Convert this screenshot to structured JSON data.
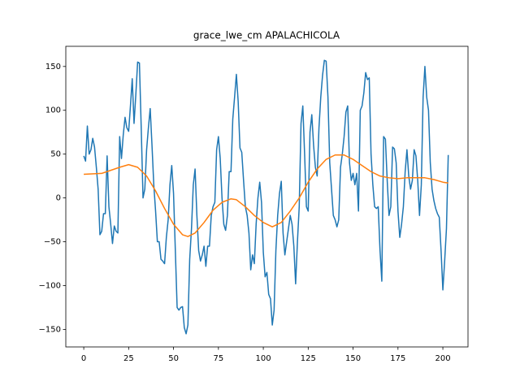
{
  "chart_data": {
    "type": "line",
    "title": "grace_lwe_cm APALACHICOLA",
    "xlim": [
      -10,
      214
    ],
    "ylim": [
      -170,
      173
    ],
    "xticks": [
      0,
      25,
      50,
      75,
      100,
      125,
      150,
      175,
      200
    ],
    "yticks": [
      {
        "value": -150,
        "label": "−150"
      },
      {
        "value": -100,
        "label": "−100"
      },
      {
        "value": -50,
        "label": "−50"
      },
      0,
      50,
      100,
      150
    ],
    "grid": false,
    "series": [
      {
        "color": "#1f77b4",
        "x": [
          0,
          1,
          2,
          3,
          4,
          5,
          6,
          7,
          8,
          9,
          10,
          11,
          12,
          13,
          14,
          15,
          16,
          17,
          18,
          19,
          20,
          21,
          22,
          23,
          24,
          25,
          26,
          27,
          28,
          29,
          30,
          31,
          32,
          33,
          34,
          35,
          36,
          37,
          38,
          39,
          40,
          41,
          42,
          43,
          44,
          45,
          46,
          47,
          48,
          49,
          50,
          51,
          52,
          53,
          54,
          55,
          56,
          57,
          58,
          59,
          60,
          61,
          62,
          63,
          64,
          65,
          66,
          67,
          68,
          69,
          70,
          71,
          72,
          73,
          74,
          75,
          76,
          77,
          78,
          79,
          80,
          81,
          82,
          83,
          84,
          85,
          86,
          87,
          88,
          89,
          90,
          91,
          92,
          93,
          94,
          95,
          96,
          97,
          98,
          99,
          100,
          101,
          102,
          103,
          104,
          105,
          106,
          107,
          108,
          109,
          110,
          111,
          112,
          113,
          114,
          115,
          116,
          117,
          118,
          119,
          120,
          121,
          122,
          123,
          124,
          125,
          126,
          127,
          128,
          129,
          130,
          131,
          132,
          133,
          134,
          135,
          136,
          137,
          138,
          139,
          140,
          141,
          142,
          143,
          144,
          145,
          146,
          147,
          148,
          149,
          150,
          151,
          152,
          153,
          154,
          155,
          156,
          157,
          158,
          159,
          160,
          161,
          162,
          163,
          164,
          165,
          166,
          167,
          168,
          169,
          170,
          171,
          172,
          173,
          174,
          175,
          176,
          177,
          178,
          179,
          180,
          181,
          182,
          183,
          184,
          185,
          186,
          187,
          188,
          189,
          190,
          191,
          192,
          193,
          194,
          195,
          196,
          197,
          198,
          199,
          200,
          201,
          202,
          203
        ],
        "values": [
          48,
          42,
          82,
          50,
          55,
          68,
          58,
          35,
          10,
          -42,
          -38,
          -18,
          -18,
          48,
          -10,
          -30,
          -52,
          -32,
          -38,
          -40,
          70,
          45,
          72,
          92,
          80,
          76,
          105,
          136,
          85,
          118,
          155,
          154,
          80,
          0,
          10,
          55,
          80,
          102,
          60,
          15,
          -15,
          -50,
          -50,
          -70,
          -72,
          -75,
          -45,
          -25,
          15,
          37,
          5,
          -60,
          -125,
          -128,
          -125,
          -124,
          -148,
          -155,
          -145,
          -70,
          -35,
          15,
          33,
          -20,
          -60,
          -72,
          -65,
          -55,
          -78,
          -55,
          -55,
          -20,
          -10,
          -5,
          55,
          70,
          45,
          0,
          -30,
          -37,
          -20,
          30,
          30,
          90,
          115,
          141,
          110,
          57,
          52,
          20,
          -10,
          -20,
          -40,
          -82,
          -65,
          -75,
          -30,
          0,
          18,
          -5,
          -62,
          -90,
          -85,
          -110,
          -115,
          -145,
          -128,
          -60,
          -20,
          5,
          19,
          -40,
          -65,
          -50,
          -35,
          -20,
          -30,
          -55,
          -98,
          -50,
          -10,
          85,
          105,
          50,
          -10,
          -15,
          75,
          95,
          60,
          35,
          25,
          80,
          115,
          140,
          157,
          156,
          115,
          40,
          10,
          -20,
          -25,
          -33,
          -25,
          35,
          50,
          70,
          98,
          105,
          40,
          20,
          28,
          15,
          28,
          -15,
          100,
          105,
          120,
          143,
          135,
          137,
          50,
          15,
          -10,
          -12,
          -10,
          -60,
          -95,
          70,
          67,
          20,
          -20,
          -10,
          58,
          56,
          40,
          -15,
          -45,
          -30,
          -10,
          30,
          55,
          25,
          10,
          20,
          55,
          48,
          20,
          -20,
          15,
          115,
          150,
          115,
          100,
          40,
          10,
          -3,
          -12,
          -18,
          -22,
          -60,
          -105,
          -72,
          -35,
          49
        ]
      },
      {
        "color": "#ff7f0e",
        "x": [
          0,
          10,
          20,
          25,
          30,
          35,
          40,
          45,
          50,
          55,
          58,
          62,
          67,
          72,
          77,
          82,
          85,
          90,
          95,
          100,
          105,
          110,
          115,
          120,
          125,
          130,
          135,
          140,
          145,
          150,
          155,
          160,
          165,
          170,
          175,
          180,
          185,
          190,
          195,
          200,
          203
        ],
        "values": [
          27,
          28,
          35,
          38,
          35,
          25,
          8,
          -12,
          -30,
          -42,
          -44,
          -40,
          -28,
          -14,
          -5,
          -1,
          -2,
          -10,
          -20,
          -28,
          -33,
          -28,
          -15,
          0,
          18,
          33,
          44,
          49,
          49,
          44,
          37,
          30,
          25,
          23,
          22,
          23,
          23,
          23,
          21,
          18,
          17
        ]
      }
    ]
  }
}
